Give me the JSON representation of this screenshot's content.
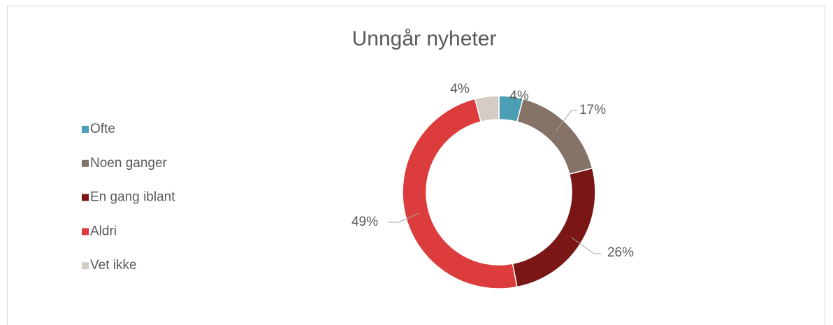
{
  "chart_data": {
    "type": "donut",
    "title": "Unngår nyheter",
    "categories": [
      "Ofte",
      "Noen ganger",
      "En gang iblant",
      "Aldri",
      "Vet ikke"
    ],
    "values": [
      4,
      17,
      26,
      49,
      4
    ],
    "value_labels": [
      "4%",
      "17%",
      "26%",
      "49%",
      "4%"
    ],
    "colors": [
      "#4a9fb5",
      "#857368",
      "#7b1616",
      "#dc3c3c",
      "#d6ccc6"
    ],
    "legend": "left"
  }
}
